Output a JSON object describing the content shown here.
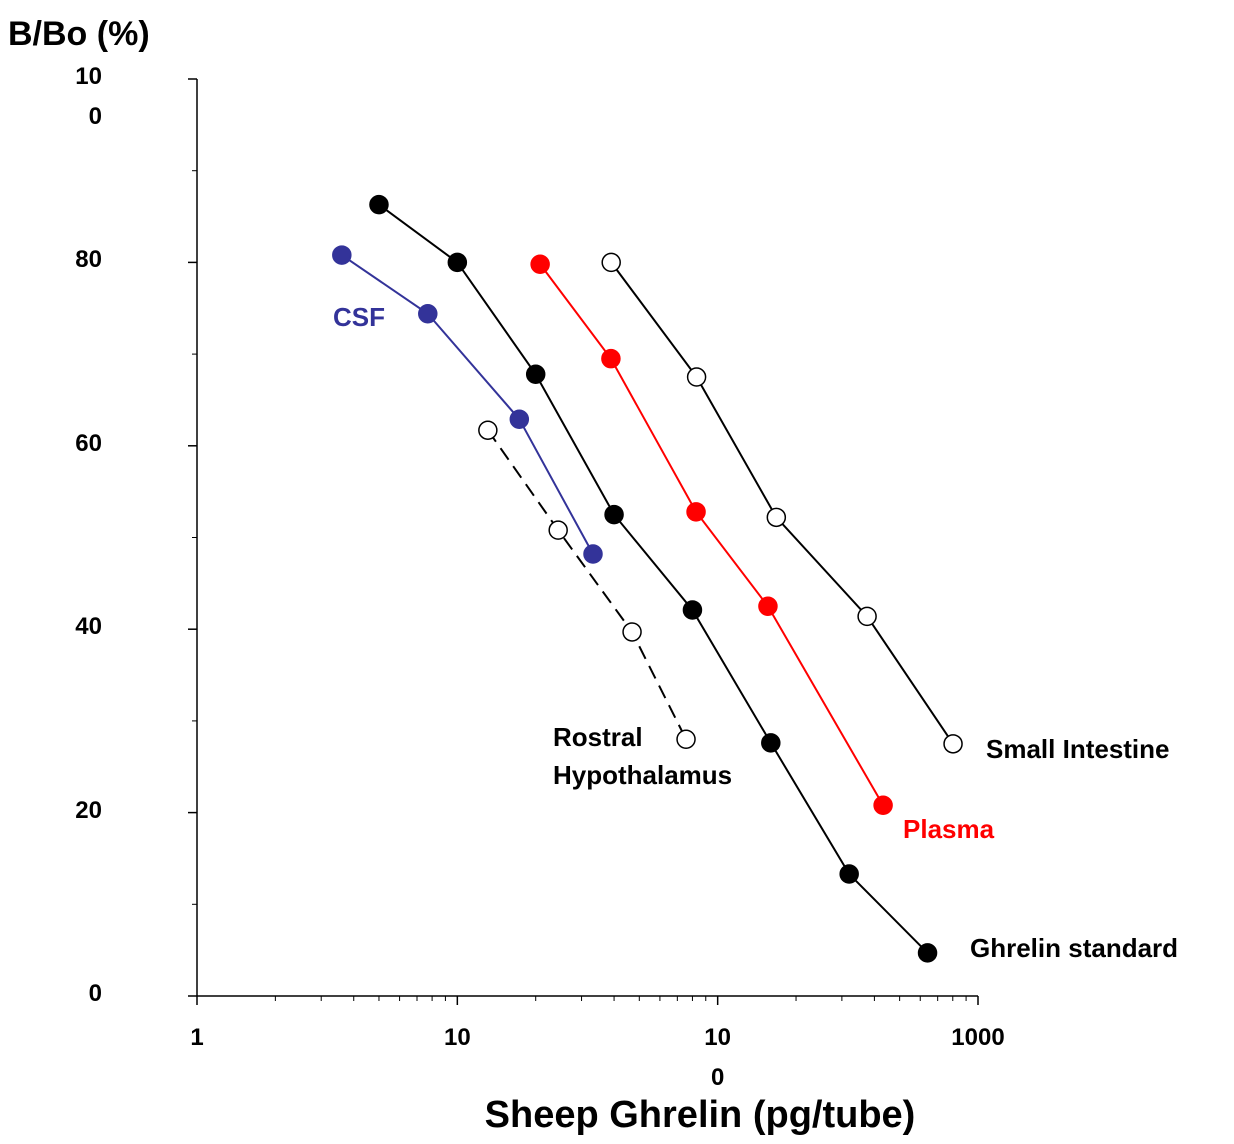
{
  "chart_data": {
    "type": "line",
    "y_label": "B/Bo (%)",
    "x_label": "Sheep Ghrelin (pg/tube)",
    "xscale": "log",
    "xlim": [
      1,
      1000
    ],
    "xticks": [
      1,
      10,
      100,
      1000
    ],
    "ylim": [
      0,
      100
    ],
    "yticks": [
      0,
      20,
      40,
      60,
      80,
      100
    ],
    "series": [
      {
        "name": "Ghrelin standard",
        "color": "#000000",
        "marker": "filled",
        "linestyle": "solid",
        "x": [
          5,
          10,
          20,
          40,
          80,
          160,
          320,
          640
        ],
        "values": [
          86.3,
          80.0,
          67.8,
          52.5,
          42.1,
          27.6,
          13.3,
          4.7
        ]
      },
      {
        "name": "CSF",
        "color": "#333399",
        "marker": "filled",
        "linestyle": "solid",
        "x": [
          3.6,
          7.7,
          17.3,
          33.2
        ],
        "values": [
          80.8,
          74.4,
          62.9,
          48.2
        ]
      },
      {
        "name": "Plasma",
        "color": "#ff0000",
        "marker": "filled",
        "linestyle": "solid",
        "x": [
          20.8,
          38.9,
          82.6,
          156,
          432
        ],
        "values": [
          79.8,
          69.5,
          52.8,
          42.5,
          20.8
        ]
      },
      {
        "name": "Small Intestine",
        "color": "#000000",
        "marker": "open",
        "linestyle": "solid",
        "x": [
          39,
          83,
          168,
          375,
          802
        ],
        "values": [
          80.0,
          67.5,
          52.2,
          41.4,
          27.5
        ]
      },
      {
        "name": "Rostral Hypothalamus",
        "color": "#000000",
        "marker": "open",
        "linestyle": "dashed",
        "x": [
          13.1,
          24.4,
          46.9,
          75.6
        ],
        "values": [
          61.7,
          50.8,
          39.7,
          28.0
        ]
      }
    ]
  }
}
